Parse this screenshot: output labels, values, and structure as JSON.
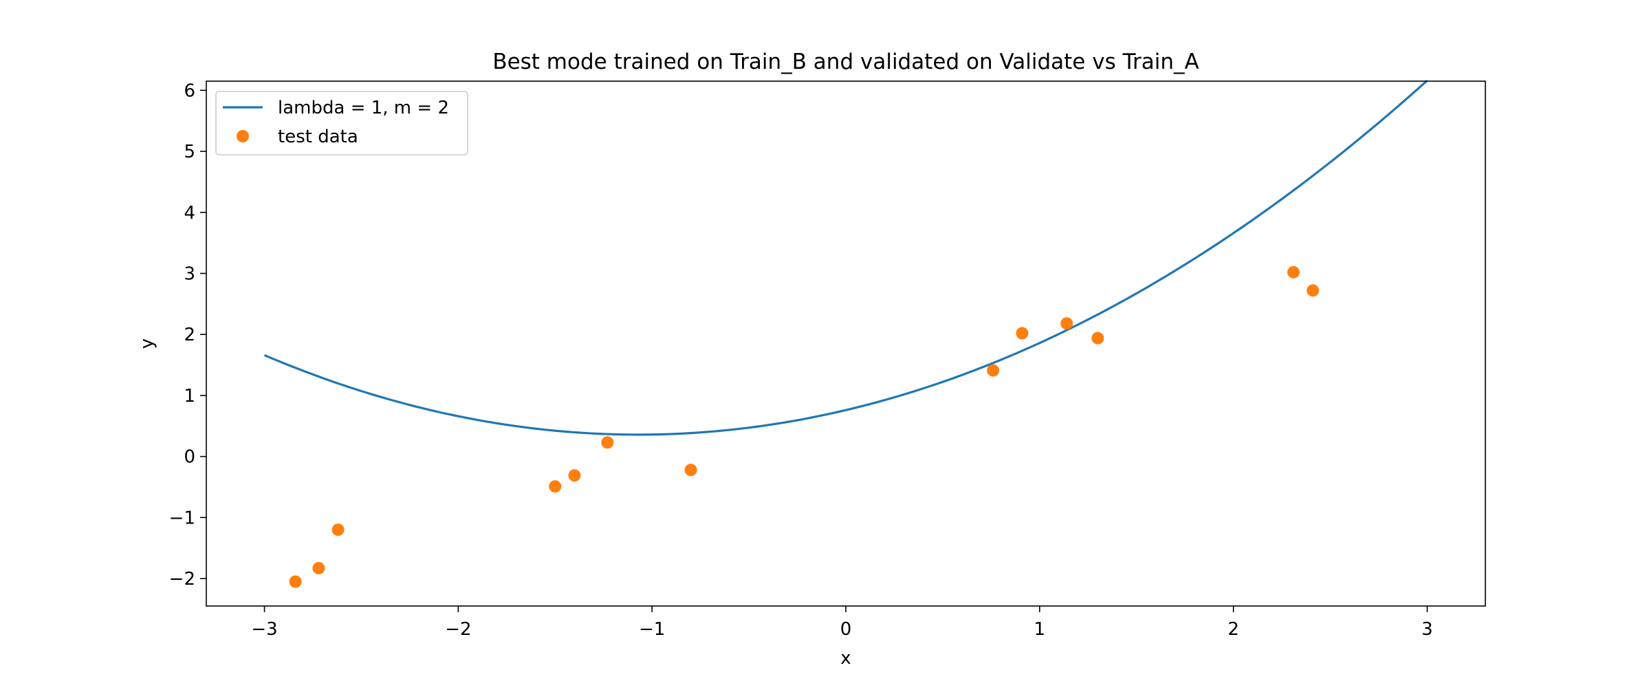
{
  "chart_data": {
    "type": "line",
    "title": "Best mode trained on Train_B and validated on Validate vs Train_A",
    "xlabel": "x",
    "ylabel": "y",
    "xlim": [
      -3.3,
      3.3
    ],
    "ylim": [
      -2.45,
      6.15
    ],
    "xticks": [
      -3,
      -2,
      -1,
      0,
      1,
      2,
      3
    ],
    "xtick_labels": [
      "−3",
      "−2",
      "−1",
      "0",
      "1",
      "2",
      "3"
    ],
    "yticks": [
      -2,
      -1,
      0,
      1,
      2,
      3,
      4,
      5,
      6
    ],
    "ytick_labels": [
      "−2",
      "−1",
      "0",
      "1",
      "2",
      "3",
      "4",
      "5",
      "6"
    ],
    "grid": false,
    "legend_position": "top-left",
    "series": [
      {
        "name": "lambda = 1, m = 2",
        "kind": "line",
        "color": "#1f77b4",
        "curve_coefficients": {
          "a": 0.35,
          "b": 0.75,
          "c": 0.76
        },
        "x_range": [
          -3,
          3
        ]
      },
      {
        "name": "test data",
        "kind": "scatter",
        "color": "#ff7f0e",
        "x": [
          -2.84,
          -2.72,
          -2.62,
          -1.5,
          -1.4,
          -1.23,
          -0.8,
          0.76,
          0.91,
          1.14,
          1.3,
          2.31,
          2.41
        ],
        "y": [
          -2.05,
          -1.83,
          -1.2,
          -0.49,
          -0.31,
          0.23,
          -0.22,
          1.41,
          2.02,
          2.18,
          1.94,
          3.02,
          2.72
        ]
      }
    ]
  }
}
